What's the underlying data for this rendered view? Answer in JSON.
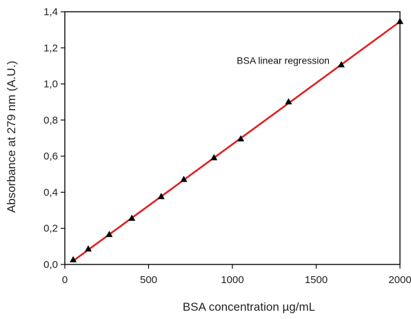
{
  "chart_data": {
    "type": "scatter",
    "title": "",
    "xlabel": "BSA concentration µg/mL",
    "ylabel": "Absorbance at 279 nm (A.U.)",
    "xlim": [
      0,
      2000
    ],
    "ylim": [
      0,
      1.4
    ],
    "x_ticks": [
      0,
      500,
      1000,
      1500,
      2000
    ],
    "x_tick_labels": [
      "0",
      "500",
      "1000",
      "1500",
      "2000"
    ],
    "y_ticks": [
      0,
      0.2,
      0.4,
      0.6,
      0.8,
      1.0,
      1.2,
      1.4
    ],
    "y_tick_labels": [
      "0,0",
      "0,2",
      "0,4",
      "0,6",
      "0,8",
      "1,0",
      "1,2",
      "1,4"
    ],
    "grid": false,
    "series": [
      {
        "marker": "triangle",
        "color": "#000000",
        "x": [
          50,
          140,
          265,
          400,
          575,
          710,
          890,
          1050,
          1335,
          1650,
          2000
        ],
        "y": [
          0.025,
          0.085,
          0.165,
          0.255,
          0.375,
          0.47,
          0.59,
          0.695,
          0.9,
          1.105,
          1.345
        ]
      }
    ],
    "regression_line": {
      "color": "#e02020",
      "x": [
        50,
        2000
      ],
      "y": [
        0.02,
        1.345
      ]
    },
    "annotations": [
      {
        "text": "BSA linear regression",
        "x": 1580,
        "y": 1.115
      }
    ]
  }
}
